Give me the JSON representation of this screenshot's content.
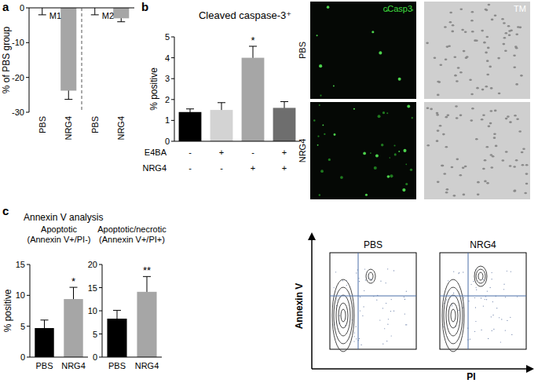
{
  "figure": {
    "panel_labels": [
      "a",
      "b",
      "c"
    ],
    "micrographs": {
      "rows": [
        "PBS",
        "NRG4"
      ],
      "channels": [
        "cCasp3",
        "TM"
      ]
    },
    "annexin_header": "Annexin V analysis",
    "flow": {
      "samples": [
        "PBS",
        "NRG4"
      ],
      "x_label": "PI",
      "y_label": "Annexin V"
    }
  },
  "chart_data": [
    {
      "type": "bar",
      "ylabel": "% of PBS group",
      "categories": [
        "PBS",
        "NRG4",
        "PBS",
        "NRG4"
      ],
      "values": [
        0,
        -23.8,
        0,
        -3
      ],
      "errors": [
        2,
        2.5,
        2,
        1
      ],
      "color": "#a6a6a6",
      "ylim": [
        -30,
        0
      ],
      "yticks": [
        -30,
        -20,
        -10,
        0
      ],
      "annotations": [
        "M1",
        "M2"
      ]
    },
    {
      "type": "bar",
      "title": "Cleaved caspase-3⁺",
      "ylabel": "% positive",
      "categories": [
        null,
        null,
        null,
        null
      ],
      "values": [
        1.4,
        1.5,
        4.0,
        1.6
      ],
      "errors": [
        0.15,
        0.35,
        0.55,
        0.3
      ],
      "colors": [
        "#000000",
        "#d3d3d3",
        "#a6a6a6",
        "#6e6e6e"
      ],
      "significance": [
        null,
        null,
        "*",
        null
      ],
      "conditions": [
        {
          "name": "E4BA",
          "signs": [
            "-",
            "+",
            "-",
            "+"
          ]
        },
        {
          "name": "NRG4",
          "signs": [
            "-",
            "-",
            "+",
            "+"
          ]
        }
      ],
      "ylim": [
        0,
        5
      ],
      "yticks": [
        0,
        1,
        2,
        3,
        4,
        5
      ]
    },
    {
      "type": "bar",
      "title": "Apoptotic",
      "subtitle": "(Annexin V+/PI-)",
      "ylabel": "% positive",
      "categories": [
        "PBS",
        "NRG4"
      ],
      "values": [
        4.7,
        9.4
      ],
      "errors": [
        1.3,
        1.9
      ],
      "colors": [
        "#000000",
        "#a6a6a6"
      ],
      "significance": [
        null,
        "*"
      ],
      "ylim": [
        0,
        15
      ],
      "yticks": [
        0,
        5,
        10,
        15
      ]
    },
    {
      "type": "bar",
      "title": "Apoptotic/necrotic",
      "subtitle": "(Annexin V+/PI+)",
      "categories": [
        "PBS",
        "NRG4"
      ],
      "values": [
        8.3,
        14.1
      ],
      "errors": [
        1.8,
        3.3
      ],
      "colors": [
        "#000000",
        "#a6a6a6"
      ],
      "significance": [
        null,
        "**"
      ],
      "ylim": [
        0,
        20
      ],
      "yticks": [
        0,
        5,
        10,
        15,
        20
      ]
    }
  ]
}
